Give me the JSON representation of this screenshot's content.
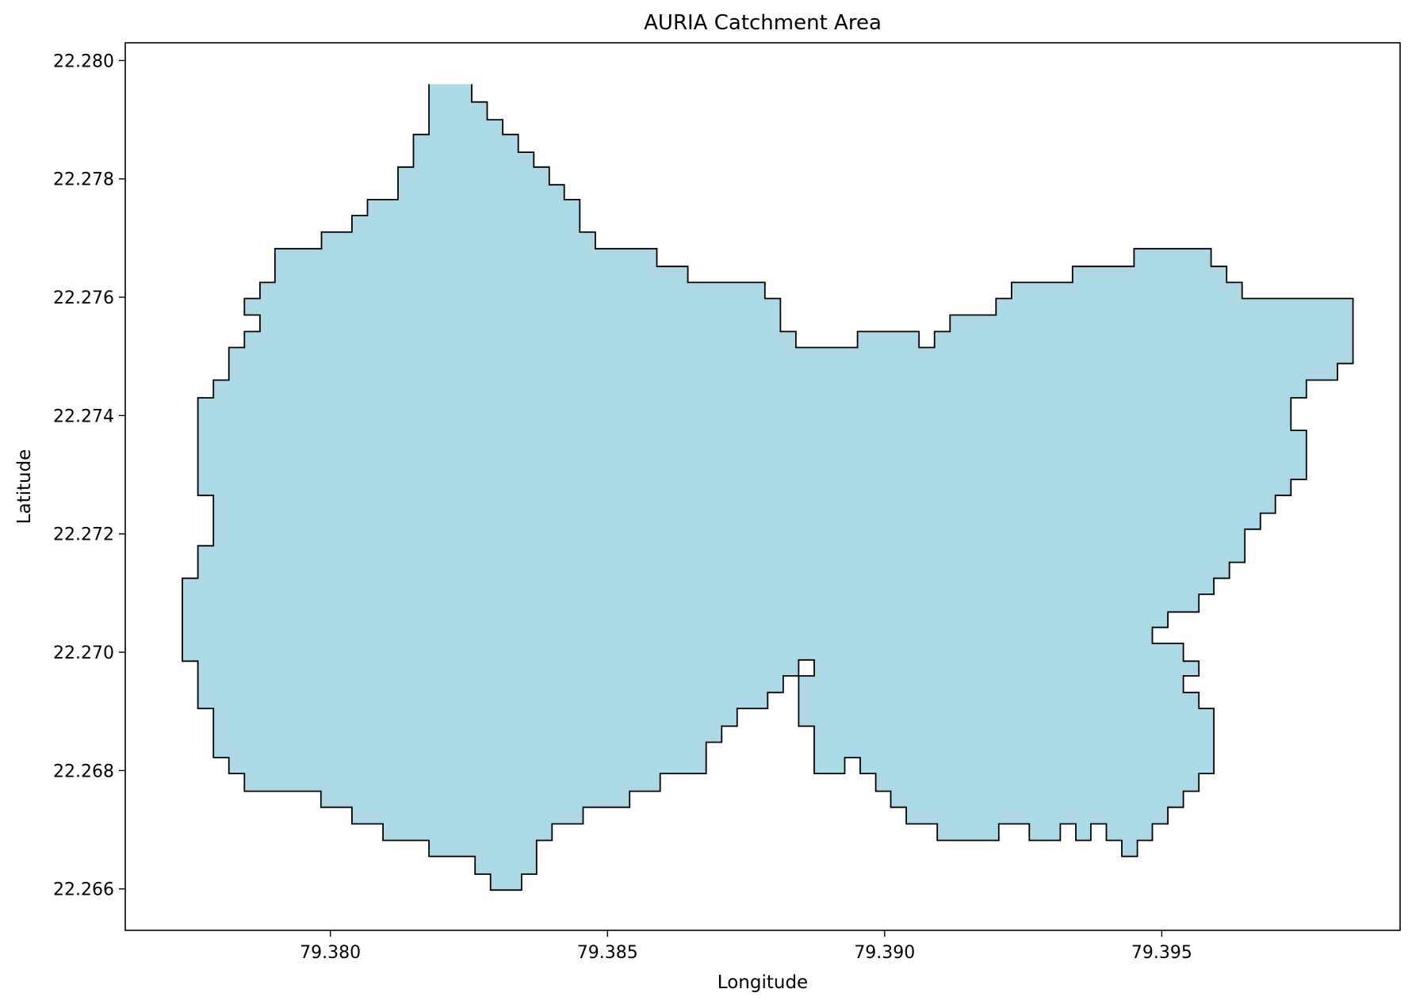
{
  "chart_data": {
    "type": "area",
    "title": "AURIA Catchment Area",
    "xlabel": "Longitude",
    "ylabel": "Latitude",
    "xlim": [
      79.3763,
      79.3993
    ],
    "ylim": [
      22.2653,
      22.2803
    ],
    "xticks": [
      79.38,
      79.385,
      79.39,
      79.395
    ],
    "xtick_labels": [
      "79.380",
      "79.385",
      "79.390",
      "79.395"
    ],
    "yticks": [
      22.266,
      22.268,
      22.27,
      22.272,
      22.274,
      22.276,
      22.278,
      22.28
    ],
    "ytick_labels": [
      "22.266",
      "22.268",
      "22.270",
      "22.272",
      "22.274",
      "22.276",
      "22.278",
      "22.280"
    ],
    "grid": false,
    "fill_color": "#add8e6",
    "edge_color": "#000000",
    "polygon": {
      "name": "AURIA",
      "lon": [
        79.38255,
        79.38255,
        79.38283,
        79.38283,
        79.38311,
        79.38311,
        79.38339,
        79.38339,
        79.38367,
        79.38367,
        79.38395,
        79.38395,
        79.38422,
        79.38422,
        79.3845,
        79.3845,
        79.38478,
        79.38478,
        79.38589,
        79.38589,
        79.38645,
        79.38645,
        79.38784,
        79.38784,
        79.38812,
        79.38812,
        79.3884,
        79.3884,
        79.38951,
        79.38951,
        79.39062,
        79.39062,
        79.3909,
        79.3909,
        79.39118,
        79.39118,
        79.39201,
        79.39201,
        79.39229,
        79.39229,
        79.39339,
        79.39339,
        79.3945,
        79.3945,
        79.39589,
        79.39589,
        79.39617,
        79.39617,
        79.39645,
        79.39645,
        79.39845,
        79.39845,
        79.39817,
        79.39817,
        79.39761,
        79.39761,
        79.39733,
        79.39733,
        79.39761,
        79.39761,
        79.39733,
        79.39733,
        79.39705,
        79.39705,
        79.39678,
        79.39678,
        79.3965,
        79.3965,
        79.39622,
        79.39622,
        79.39594,
        79.39594,
        79.39567,
        79.39567,
        79.39511,
        79.39511,
        79.39483,
        79.39483,
        79.39539,
        79.39539,
        79.39567,
        79.39567,
        79.39539,
        79.39539,
        79.39567,
        79.39567,
        79.39594,
        79.39594,
        79.39567,
        79.39567,
        79.39539,
        79.39539,
        79.39511,
        79.39511,
        79.39483,
        79.39483,
        79.39456,
        79.39456,
        79.39428,
        79.39428,
        79.394,
        79.394,
        79.39372,
        79.39372,
        79.39345,
        79.39345,
        79.39317,
        79.39317,
        79.39261,
        79.39261,
        79.39206,
        79.39206,
        79.39095,
        79.39095,
        79.39039,
        79.39039,
        79.39011,
        79.39011,
        79.38984,
        79.38984,
        79.38956,
        79.38956,
        79.38928,
        79.38928,
        79.38873,
        79.38873,
        79.38845,
        79.38845,
        79.38873,
        79.38873,
        79.38845,
        79.38845,
        79.38817,
        79.38817,
        79.38789,
        79.38789,
        79.38734,
        79.38734,
        79.38706,
        79.38706,
        79.38678,
        79.38678,
        79.38595,
        79.38595,
        79.3854,
        79.3854,
        79.38456,
        79.38456,
        79.384,
        79.384,
        79.38372,
        79.38372,
        79.38345,
        79.38345,
        79.38289,
        79.38289,
        79.38261,
        79.38261,
        79.38178,
        79.38178,
        79.38095,
        79.38095,
        79.38039,
        79.38039,
        79.37983,
        79.37983,
        79.37845,
        79.37845,
        79.37817,
        79.37817,
        79.37789,
        79.37789,
        79.37761,
        79.37761,
        79.37733,
        79.37733,
        79.37761,
        79.37761,
        79.37789,
        79.37789,
        79.37761,
        79.37761,
        79.37789,
        79.37789,
        79.37817,
        79.37817,
        79.37845,
        79.37845,
        79.37873,
        79.37873,
        79.37845,
        79.37845,
        79.37873,
        79.37873,
        79.379,
        79.379,
        79.37984,
        79.37984,
        79.38039,
        79.38039,
        79.38067,
        79.38067,
        79.38122,
        79.38122,
        79.3815,
        79.3815,
        79.38178,
        79.38178,
        79.38206,
        79.38206,
        79.38233,
        79.38233
      ],
      "lat": [
        22.2796,
        22.2793,
        22.2793,
        22.279,
        22.279,
        22.27875,
        22.27875,
        22.27845,
        22.27845,
        22.2782,
        22.2782,
        22.2779,
        22.2779,
        22.27765,
        22.27765,
        22.2771,
        22.2771,
        22.27682,
        22.27682,
        22.27652,
        22.27652,
        22.27625,
        22.27625,
        22.27598,
        22.27598,
        22.27542,
        22.27542,
        22.27515,
        22.27515,
        22.27542,
        22.27542,
        22.27515,
        22.27515,
        22.27542,
        22.27542,
        22.2757,
        22.2757,
        22.27598,
        22.27598,
        22.27625,
        22.27625,
        22.27652,
        22.27652,
        22.27682,
        22.27682,
        22.27652,
        22.27652,
        22.27625,
        22.27625,
        22.27598,
        22.27598,
        22.27488,
        22.27488,
        22.2746,
        22.2746,
        22.2743,
        22.2743,
        22.27375,
        22.27375,
        22.27292,
        22.27292,
        22.27265,
        22.27265,
        22.27235,
        22.27235,
        22.27208,
        22.27208,
        22.27152,
        22.27152,
        22.27125,
        22.27125,
        22.27098,
        22.27098,
        22.27068,
        22.27068,
        22.27042,
        22.27042,
        22.27015,
        22.27015,
        22.26985,
        22.26985,
        22.2696,
        22.2696,
        22.26932,
        22.26932,
        22.26905,
        22.26905,
        22.26795,
        22.26795,
        22.26765,
        22.26765,
        22.26738,
        22.26738,
        22.2671,
        22.2671,
        22.26682,
        22.26682,
        22.26655,
        22.26655,
        22.26682,
        22.26682,
        22.2671,
        22.2671,
        22.26682,
        22.26682,
        22.2671,
        22.2671,
        22.26682,
        22.26682,
        22.2671,
        22.2671,
        22.26682,
        22.26682,
        22.2671,
        22.2671,
        22.26738,
        22.26738,
        22.26765,
        22.26765,
        22.26795,
        22.26795,
        22.26822,
        22.26822,
        22.26795,
        22.26795,
        22.26875,
        22.26875,
        22.2696,
        22.2696,
        22.26987,
        22.26987,
        22.2696,
        22.2696,
        22.26932,
        22.26932,
        22.26905,
        22.26905,
        22.26875,
        22.26875,
        22.26848,
        22.26848,
        22.26795,
        22.26795,
        22.26765,
        22.26765,
        22.26738,
        22.26738,
        22.2671,
        22.2671,
        22.26682,
        22.26682,
        22.26625,
        22.26625,
        22.26598,
        22.26598,
        22.26625,
        22.26625,
        22.26655,
        22.26655,
        22.26682,
        22.26682,
        22.2671,
        22.2671,
        22.26738,
        22.26738,
        22.26765,
        22.26765,
        22.26795,
        22.26795,
        22.26822,
        22.26822,
        22.26905,
        22.26905,
        22.26985,
        22.26985,
        22.27125,
        22.27125,
        22.2718,
        22.2718,
        22.27265,
        22.27265,
        22.2743,
        22.2743,
        22.2746,
        22.2746,
        22.27515,
        22.27515,
        22.27542,
        22.27542,
        22.2757,
        22.2757,
        22.27598,
        22.27598,
        22.27625,
        22.27625,
        22.27682,
        22.27682,
        22.2771,
        22.2771,
        22.27738,
        22.27738,
        22.27765,
        22.27765,
        22.2782,
        22.2782,
        22.27875,
        22.27875,
        22.2796
      ]
    },
    "hole": {
      "lon": [
        79.38845,
        79.38845,
        79.38873,
        79.38873
      ],
      "lat": [
        22.2696,
        22.26987,
        22.26987,
        22.2696
      ]
    }
  }
}
